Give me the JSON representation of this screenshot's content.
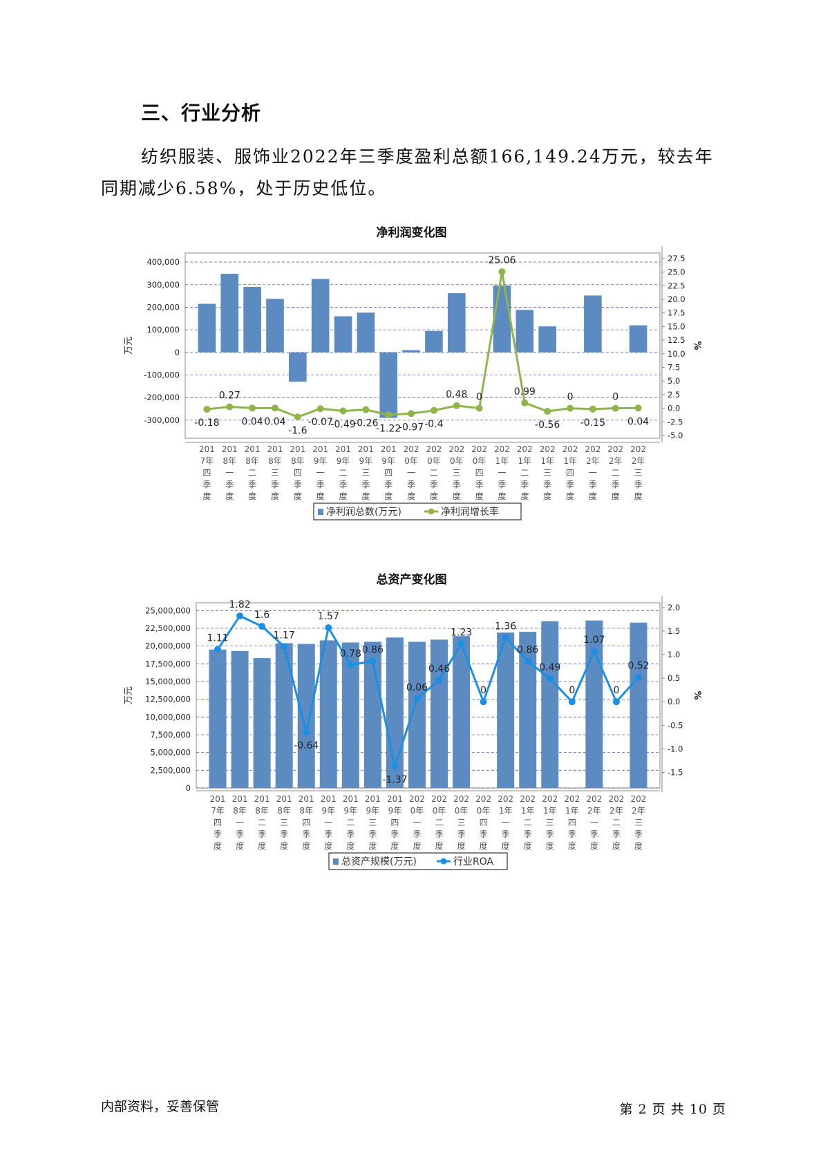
{
  "document": {
    "heading": "三、行业分析",
    "paragraph": "纺织服装、服饰业2022年三季度盈利总额166,149.24万元，较去年同期减少6.58%，处于历史低位。",
    "footer_left": "内部资料，妥善保管",
    "footer_right": "第 2 页   共 10 页"
  },
  "colors": {
    "bar": "#5B8BC0",
    "line1": "#8DB54A",
    "line2": "#1A8FE3",
    "grid": "#3333AA"
  },
  "chart_data": [
    {
      "type": "bar",
      "title": "净利润变化图",
      "categories": [
        "2017年四季度",
        "2018年一季度",
        "2018年二季度",
        "2018年三季度",
        "2018年四季度",
        "2019年一季度",
        "2019年二季度",
        "2019年三季度",
        "2019年四季度",
        "2020年一季度",
        "2020年二季度",
        "2020年三季度",
        "2020年四季度",
        "2021年一季度",
        "2021年二季度",
        "2021年三季度",
        "2021年四季度",
        "2022年一季度",
        "2022年二季度",
        "2022年三季度"
      ],
      "ylabel": "万元",
      "y2label": "%",
      "ylim": [
        -380000,
        440000
      ],
      "y2lim": [
        -5.5,
        28.5
      ],
      "yticks": [
        "400,000",
        "300,000",
        "200,000",
        "100,000",
        "0",
        "-100,000",
        "-200,000",
        "-300,000"
      ],
      "y2ticks": [
        "27.5",
        "25.0",
        "22.5",
        "20.0",
        "17.5",
        "15.0",
        "12.5",
        "10.0",
        "7.5",
        "5.0",
        "2.5",
        "0.0",
        "-2.5",
        "-5.0"
      ],
      "series": [
        {
          "name": "净利润总数(万元)",
          "kind": "bar",
          "values": [
            215000,
            348000,
            290000,
            237000,
            -130000,
            325000,
            160000,
            176000,
            -290000,
            10000,
            95000,
            262000,
            0,
            296000,
            188000,
            115000,
            0,
            252000,
            0,
            120000
          ]
        },
        {
          "name": "净利润增长率",
          "kind": "line",
          "values": [
            -0.18,
            0.27,
            0.04,
            0.04,
            -1.6,
            -0.07,
            -0.49,
            -0.26,
            -1.22,
            -0.97,
            -0.4,
            0.48,
            0,
            25.06,
            0.99,
            -0.56,
            0,
            -0.15,
            0,
            0.04
          ],
          "labels": [
            "-0.18",
            "0.27",
            "0.04",
            "0.04",
            "-1.6",
            "-0.07",
            "-0.49",
            "-0.26",
            "-1.22",
            "-0.97",
            "-0.4",
            "0.48",
            "0",
            "25.06",
            "0.99",
            "-0.56",
            "0",
            "-0.15",
            "0",
            "0.04"
          ]
        }
      ],
      "legend": "bottom"
    },
    {
      "type": "bar",
      "title": "总资产变化图",
      "categories": [
        "2017年四季度",
        "2018年一季度",
        "2018年二季度",
        "2018年三季度",
        "2018年四季度",
        "2019年一季度",
        "2019年二季度",
        "2019年三季度",
        "2019年四季度",
        "2020年一季度",
        "2020年二季度",
        "2020年三季度",
        "2020年四季度",
        "2021年一季度",
        "2021年二季度",
        "2021年三季度",
        "2021年四季度",
        "2022年一季度",
        "2022年二季度",
        "2022年三季度"
      ],
      "ylabel": "万元",
      "y2label": "%",
      "ylim": [
        0,
        26100000
      ],
      "y2lim": [
        -1.83,
        2.1
      ],
      "yticks": [
        "25,000,000",
        "22,500,000",
        "20,000,000",
        "17,500,000",
        "15,000,000",
        "12,500,000",
        "10,000,000",
        "7,500,000",
        "5,000,000",
        "2,500,000",
        "0"
      ],
      "y2ticks": [
        "2.0",
        "1.5",
        "1.0",
        "0.5",
        "0.0",
        "-0.5",
        "-1.0",
        "-1.5"
      ],
      "series": [
        {
          "name": "总资产规模(万元)",
          "kind": "bar",
          "values": [
            19500000,
            19300000,
            18300000,
            20400000,
            20300000,
            20800000,
            20500000,
            20600000,
            21200000,
            20600000,
            20900000,
            21400000,
            0,
            21900000,
            22000000,
            23500000,
            0,
            23600000,
            0,
            23300000
          ]
        },
        {
          "name": "行业ROA",
          "kind": "line",
          "values": [
            1.11,
            1.82,
            1.6,
            1.17,
            -0.64,
            1.57,
            0.78,
            0.86,
            -1.37,
            0.06,
            0.46,
            1.23,
            0,
            1.36,
            0.86,
            0.49,
            0,
            1.07,
            0,
            0.52
          ],
          "labels": [
            "1.11",
            "1.82",
            "1.6",
            "1.17",
            "-0.64",
            "1.57",
            "0.78",
            "0.86",
            "-1.37",
            "0.06",
            "0.46",
            "1.23",
            "0",
            "1.36",
            "0.86",
            "0.49",
            "0",
            "1.07",
            "0",
            "0.52"
          ]
        }
      ],
      "legend": "bottom"
    }
  ]
}
